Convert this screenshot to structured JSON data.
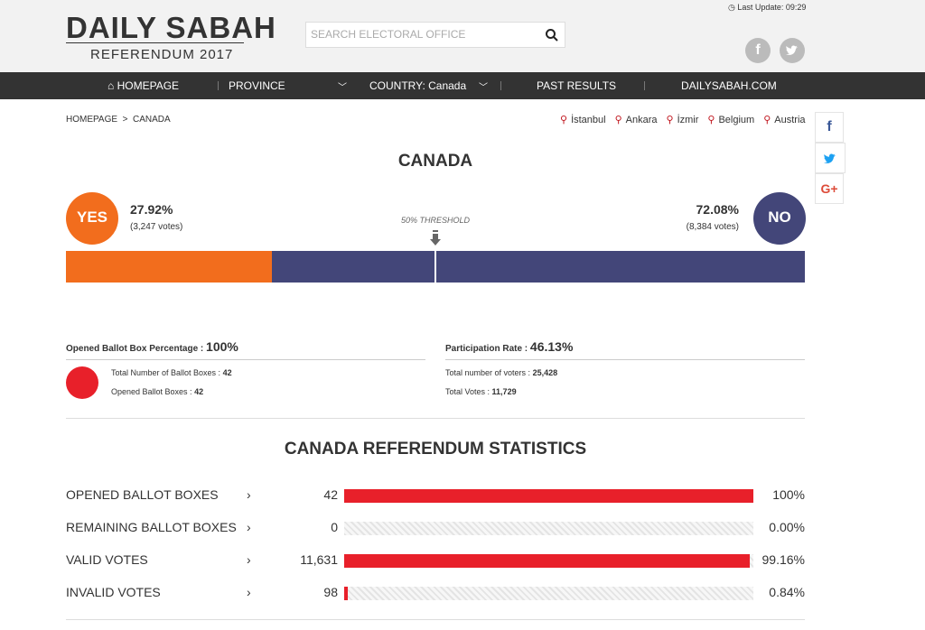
{
  "header": {
    "logo_title": "DAILY SABAH",
    "logo_subtitle": "REFERENDUM 2017",
    "search_placeholder": "SEARCH ELECTORAL OFFICE",
    "last_update": "Last Update: 09:29"
  },
  "icons": {
    "facebook": "f",
    "google": "G+"
  },
  "nav": [
    "HOMEPAGE",
    "PROVINCE",
    "COUNTRY: Canada",
    "PAST RESULTS",
    "DAILYSABAH.COM"
  ],
  "breadcrumb": [
    "HOMEPAGE",
    "CANADA"
  ],
  "quick_links": [
    "İstanbul",
    "Ankara",
    "İzmir",
    "Belgium",
    "Austria"
  ],
  "title": "CANADA",
  "yes": {
    "label": "YES",
    "percent": 27.92,
    "percent_label": "27.92%",
    "votes": "(3,247 votes)"
  },
  "no": {
    "label": "NO",
    "percent": 72.08,
    "percent_label": "72.08%",
    "votes": "(8,384 votes)"
  },
  "threshold": {
    "value": 50,
    "label": "50% THRESHOLD"
  },
  "ballot": {
    "title": "Opened Ballot Box Percentage :",
    "percent": 100,
    "percent_label": "100%",
    "items": [
      {
        "label": "Total Number of Ballot Boxes :",
        "value": "42"
      },
      {
        "label": "Opened Ballot Boxes :",
        "value": "42"
      }
    ]
  },
  "participation": {
    "title": "Participation Rate :",
    "percent_label": "46.13%",
    "items": [
      {
        "label": "Total number of voters :",
        "value": "25,428"
      },
      {
        "label": "Total Votes :",
        "value": "11,729"
      }
    ]
  },
  "stats": {
    "title": "CANADA REFERENDUM STATISTICS",
    "rows": [
      {
        "label": "OPENED BALLOT BOXES",
        "count": "42",
        "percent": 100,
        "percent_label": "100%"
      },
      {
        "label": "REMAINING BALLOT BOXES",
        "count": "0",
        "percent": 0.0,
        "percent_label": "0.00%"
      },
      {
        "label": "VALID VOTES",
        "count": "11,631",
        "percent": 99.16,
        "percent_label": "99.16%"
      },
      {
        "label": "INVALID VOTES",
        "count": "98",
        "percent": 0.84,
        "percent_label": "0.84%"
      }
    ]
  }
}
